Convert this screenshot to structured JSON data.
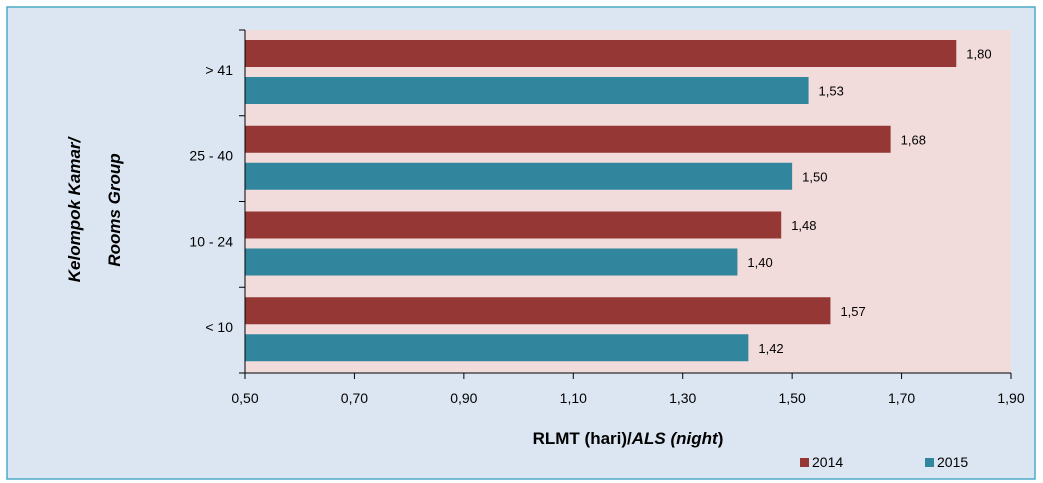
{
  "chart_data": {
    "type": "bar",
    "orientation": "horizontal",
    "categories": [
      "> 41",
      "25 - 40",
      "10 - 24",
      "< 10"
    ],
    "series": [
      {
        "name": "2014",
        "values": [
          1.8,
          1.68,
          1.48,
          1.57
        ],
        "labels": [
          "1,80",
          "1,68",
          "1,48",
          "1,57"
        ],
        "color": "#953735"
      },
      {
        "name": "2015",
        "values": [
          1.53,
          1.5,
          1.4,
          1.42
        ],
        "labels": [
          "1,53",
          "1,50",
          "1,40",
          "1,42"
        ],
        "color": "#31859C"
      }
    ],
    "xlim": [
      0.5,
      1.9
    ],
    "xticks": [
      0.5,
      0.7,
      0.9,
      1.1,
      1.3,
      1.5,
      1.7,
      1.9
    ],
    "xtick_labels": [
      "0,50",
      "0,70",
      "0,90",
      "1,10",
      "1,30",
      "1,50",
      "1,70",
      "1,90"
    ],
    "xlabel_plain": "RLMT (hari)/",
    "xlabel_italic": "ALS (",
    "xlabel_bold_italic": "night",
    "xlabel_close": ")",
    "ylabel_line1": "Kelompok Kamar/",
    "ylabel_line2": "Rooms Group",
    "legend_position": "bottom-right",
    "grid": false,
    "colors": {
      "outer_background": "#DCE6F2",
      "outer_border": "#4BACC6",
      "plot_background": "#F2DCDB"
    }
  }
}
